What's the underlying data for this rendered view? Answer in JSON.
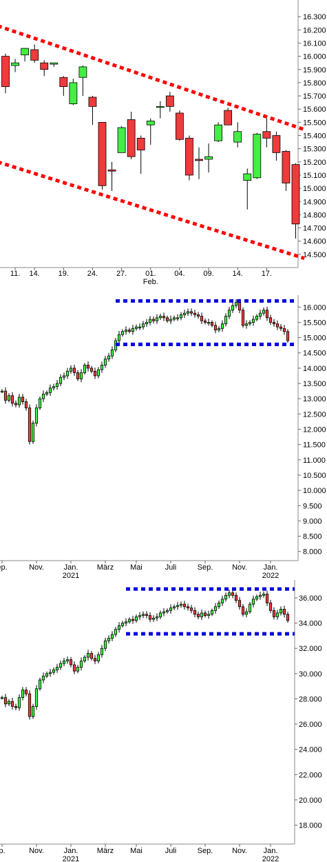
{
  "chart_data": [
    {
      "type": "candlestick",
      "title": "",
      "ylim": [
        14400,
        16400
      ],
      "y_ticks": [
        16300,
        16200,
        16100,
        16000,
        15900,
        15800,
        15700,
        15600,
        15500,
        15400,
        15300,
        15200,
        15100,
        15000,
        14900,
        14800,
        14700,
        14600,
        14500
      ],
      "y_tick_labels": [
        "16.300",
        "16.200",
        "16.100",
        "16.000",
        "15.900",
        "15.800",
        "15.700",
        "15.600",
        "15.500",
        "15.400",
        "15.300",
        "15.200",
        "15.100",
        "15.000",
        "14.900",
        "14.800",
        "14.700",
        "14.600",
        "14.500"
      ],
      "x_ticks": [
        {
          "label": "11.",
          "sub": "",
          "index": 1
        },
        {
          "label": "14.",
          "sub": "",
          "index": 3
        },
        {
          "label": "19.",
          "sub": "",
          "index": 6
        },
        {
          "label": "24.",
          "sub": "",
          "index": 9
        },
        {
          "label": "27.",
          "sub": "",
          "index": 12
        },
        {
          "label": "01.",
          "sub": "Feb.",
          "index": 15
        },
        {
          "label": "04.",
          "sub": "",
          "index": 18
        },
        {
          "label": "09.",
          "sub": "",
          "index": 21
        },
        {
          "label": "14.",
          "sub": "",
          "index": 24
        },
        {
          "label": "17.",
          "sub": "",
          "index": 27
        }
      ],
      "candles": [
        {
          "o": 16000,
          "h": 16020,
          "l": 15720,
          "c": 15770
        },
        {
          "o": 15930,
          "h": 15980,
          "l": 15880,
          "c": 15950
        },
        {
          "o": 16010,
          "h": 16060,
          "l": 15960,
          "c": 16060
        },
        {
          "o": 16050,
          "h": 16090,
          "l": 15950,
          "c": 15970
        },
        {
          "o": 15950,
          "h": 15970,
          "l": 15850,
          "c": 15900
        },
        {
          "o": 15940,
          "h": 15950,
          "l": 15920,
          "c": 15950
        },
        {
          "o": 15840,
          "h": 15850,
          "l": 15700,
          "c": 15770
        },
        {
          "o": 15640,
          "h": 15830,
          "l": 15630,
          "c": 15800
        },
        {
          "o": 15840,
          "h": 15930,
          "l": 15700,
          "c": 15920
        },
        {
          "o": 15690,
          "h": 15700,
          "l": 15480,
          "c": 15620
        },
        {
          "o": 15500,
          "h": 15500,
          "l": 14990,
          "c": 15020
        },
        {
          "o": 15140,
          "h": 15200,
          "l": 14980,
          "c": 15130
        },
        {
          "o": 15270,
          "h": 15470,
          "l": 15270,
          "c": 15460
        },
        {
          "o": 15520,
          "h": 15580,
          "l": 15220,
          "c": 15240
        },
        {
          "o": 15380,
          "h": 15400,
          "l": 15110,
          "c": 15290
        },
        {
          "o": 15480,
          "h": 15530,
          "l": 15330,
          "c": 15510
        },
        {
          "o": 15620,
          "h": 15660,
          "l": 15530,
          "c": 15620
        },
        {
          "o": 15700,
          "h": 15730,
          "l": 15580,
          "c": 15620
        },
        {
          "o": 15570,
          "h": 15590,
          "l": 15360,
          "c": 15370
        },
        {
          "o": 15380,
          "h": 15400,
          "l": 15060,
          "c": 15100
        },
        {
          "o": 15220,
          "h": 15310,
          "l": 15070,
          "c": 15210
        },
        {
          "o": 15220,
          "h": 15340,
          "l": 15120,
          "c": 15240
        },
        {
          "o": 15360,
          "h": 15500,
          "l": 15350,
          "c": 15480
        },
        {
          "o": 15590,
          "h": 15610,
          "l": 15480,
          "c": 15480
        },
        {
          "o": 15350,
          "h": 15500,
          "l": 15310,
          "c": 15430
        },
        {
          "o": 15060,
          "h": 15150,
          "l": 14840,
          "c": 15110
        },
        {
          "o": 15080,
          "h": 15420,
          "l": 15070,
          "c": 15410
        },
        {
          "o": 15430,
          "h": 15530,
          "l": 15310,
          "c": 15380
        },
        {
          "o": 15400,
          "h": 15430,
          "l": 15210,
          "c": 15270
        },
        {
          "o": 15280,
          "h": 15290,
          "l": 14980,
          "c": 15040
        },
        {
          "o": 15180,
          "h": 15190,
          "l": 14620,
          "c": 14730
        }
      ],
      "trendlines": [
        {
          "color": "#ff0000",
          "from": {
            "i": -0.8,
            "v": 16230
          },
          "to": {
            "i": 31.1,
            "v": 15440
          }
        },
        {
          "color": "#ff0000",
          "from": {
            "i": -0.8,
            "v": 15200
          },
          "to": {
            "i": 30.9,
            "v": 14470
          }
        }
      ]
    },
    {
      "type": "candlestick",
      "title": "",
      "ylim": [
        7700,
        16300
      ],
      "y_ticks": [
        16000,
        15500,
        15000,
        14500,
        14000,
        13500,
        13000,
        12500,
        12000,
        11500,
        11000,
        10500,
        10000,
        9500,
        9000,
        8500,
        8000
      ],
      "y_tick_labels": [
        "16.000",
        "15.500",
        "15.000",
        "14.500",
        "14.000",
        "13.500",
        "13.000",
        "12.500",
        "12.000",
        "11.500",
        "11.000",
        "10.500",
        "10.000",
        "9.500",
        "9.000",
        "8.500",
        "8.000"
      ],
      "x_ticks": [
        {
          "label": "ep.",
          "sub": "",
          "index": 0
        },
        {
          "label": "Nov.",
          "sub": "",
          "index": 10
        },
        {
          "label": "Jan.",
          "sub": "2021",
          "index": 20
        },
        {
          "label": "März",
          "sub": "",
          "index": 30
        },
        {
          "label": "Mai",
          "sub": "",
          "index": 39
        },
        {
          "label": "Juli",
          "sub": "",
          "index": 49
        },
        {
          "label": "Sep.",
          "sub": "",
          "index": 59
        },
        {
          "label": "Nov.",
          "sub": "",
          "index": 69
        },
        {
          "label": "Jan.",
          "sub": "2022",
          "index": 78
        }
      ],
      "closes": [
        13250,
        12950,
        13100,
        12850,
        12800,
        13050,
        12900,
        12700,
        11600,
        12200,
        12700,
        13000,
        13150,
        13200,
        13350,
        13400,
        13500,
        13700,
        13750,
        13900,
        14000,
        13850,
        13650,
        13850,
        14100,
        14000,
        13900,
        13750,
        13950,
        14100,
        14300,
        14400,
        14600,
        14900,
        15100,
        15200,
        15250,
        15200,
        15300,
        15350,
        15350,
        15450,
        15500,
        15600,
        15550,
        15650,
        15700,
        15650,
        15550,
        15600,
        15650,
        15650,
        15750,
        15800,
        15850,
        15800,
        15750,
        15700,
        15550,
        15500,
        15500,
        15400,
        15250,
        15300,
        15450,
        15700,
        15900,
        16050,
        16150,
        15900,
        15400,
        15450,
        15500,
        15600,
        15700,
        15800,
        15900,
        15650,
        15500,
        15450,
        15350,
        15300,
        15200,
        14900
      ],
      "trendlines": [
        {
          "color": "#0000dd",
          "from": {
            "i": 33,
            "v": 16200
          },
          "to": {
            "i": 85,
            "v": 16200
          }
        },
        {
          "color": "#0000dd",
          "from": {
            "i": 33,
            "v": 14780
          },
          "to": {
            "i": 85,
            "v": 14780
          }
        }
      ]
    },
    {
      "type": "candlestick",
      "title": "",
      "ylim": [
        16500,
        37200
      ],
      "y_ticks": [
        36000,
        34000,
        32000,
        30000,
        28000,
        26000,
        24000,
        22000,
        20000,
        18000
      ],
      "y_tick_labels": [
        "36.000",
        "34.000",
        "32.000",
        "30.000",
        "28.000",
        "26.000",
        "24.000",
        "22.000",
        "20.000",
        "18.000"
      ],
      "x_ticks": [
        {
          "label": "p.",
          "sub": "",
          "index": 0
        },
        {
          "label": "Nov.",
          "sub": "",
          "index": 10
        },
        {
          "label": "Jan.",
          "sub": "2021",
          "index": 20
        },
        {
          "label": "März",
          "sub": "",
          "index": 30
        },
        {
          "label": "Mai",
          "sub": "",
          "index": 39
        },
        {
          "label": "Juli",
          "sub": "",
          "index": 49
        },
        {
          "label": "Sep.",
          "sub": "",
          "index": 59
        },
        {
          "label": "Nov.",
          "sub": "",
          "index": 69
        },
        {
          "label": "Jan.",
          "sub": "2022",
          "index": 78
        }
      ],
      "closes": [
        28100,
        27600,
        27800,
        27400,
        27300,
        28100,
        28700,
        28400,
        26600,
        27400,
        28800,
        29500,
        29800,
        30000,
        30100,
        30300,
        30500,
        30800,
        31000,
        31100,
        30700,
        30200,
        30500,
        31000,
        31300,
        31600,
        31200,
        31000,
        31500,
        32000,
        32600,
        32800,
        33100,
        33500,
        33800,
        34000,
        34100,
        34300,
        34200,
        34500,
        34600,
        34700,
        34600,
        34300,
        34400,
        34500,
        34800,
        34900,
        35000,
        35200,
        35300,
        35400,
        35500,
        35300,
        35200,
        35000,
        34700,
        34500,
        34800,
        34600,
        34700,
        35000,
        35300,
        35600,
        35900,
        36200,
        36400,
        36200,
        35800,
        35300,
        34700,
        34900,
        35500,
        35900,
        36100,
        36200,
        36300,
        35600,
        35000,
        34500,
        34800,
        35100,
        34700,
        34200
      ],
      "trendlines": [
        {
          "color": "#0000dd",
          "from": {
            "i": 36,
            "v": 36700
          },
          "to": {
            "i": 85,
            "v": 36700
          }
        },
        {
          "color": "#0000dd",
          "from": {
            "i": 36,
            "v": 33150
          },
          "to": {
            "i": 85,
            "v": 33150
          }
        }
      ]
    }
  ]
}
